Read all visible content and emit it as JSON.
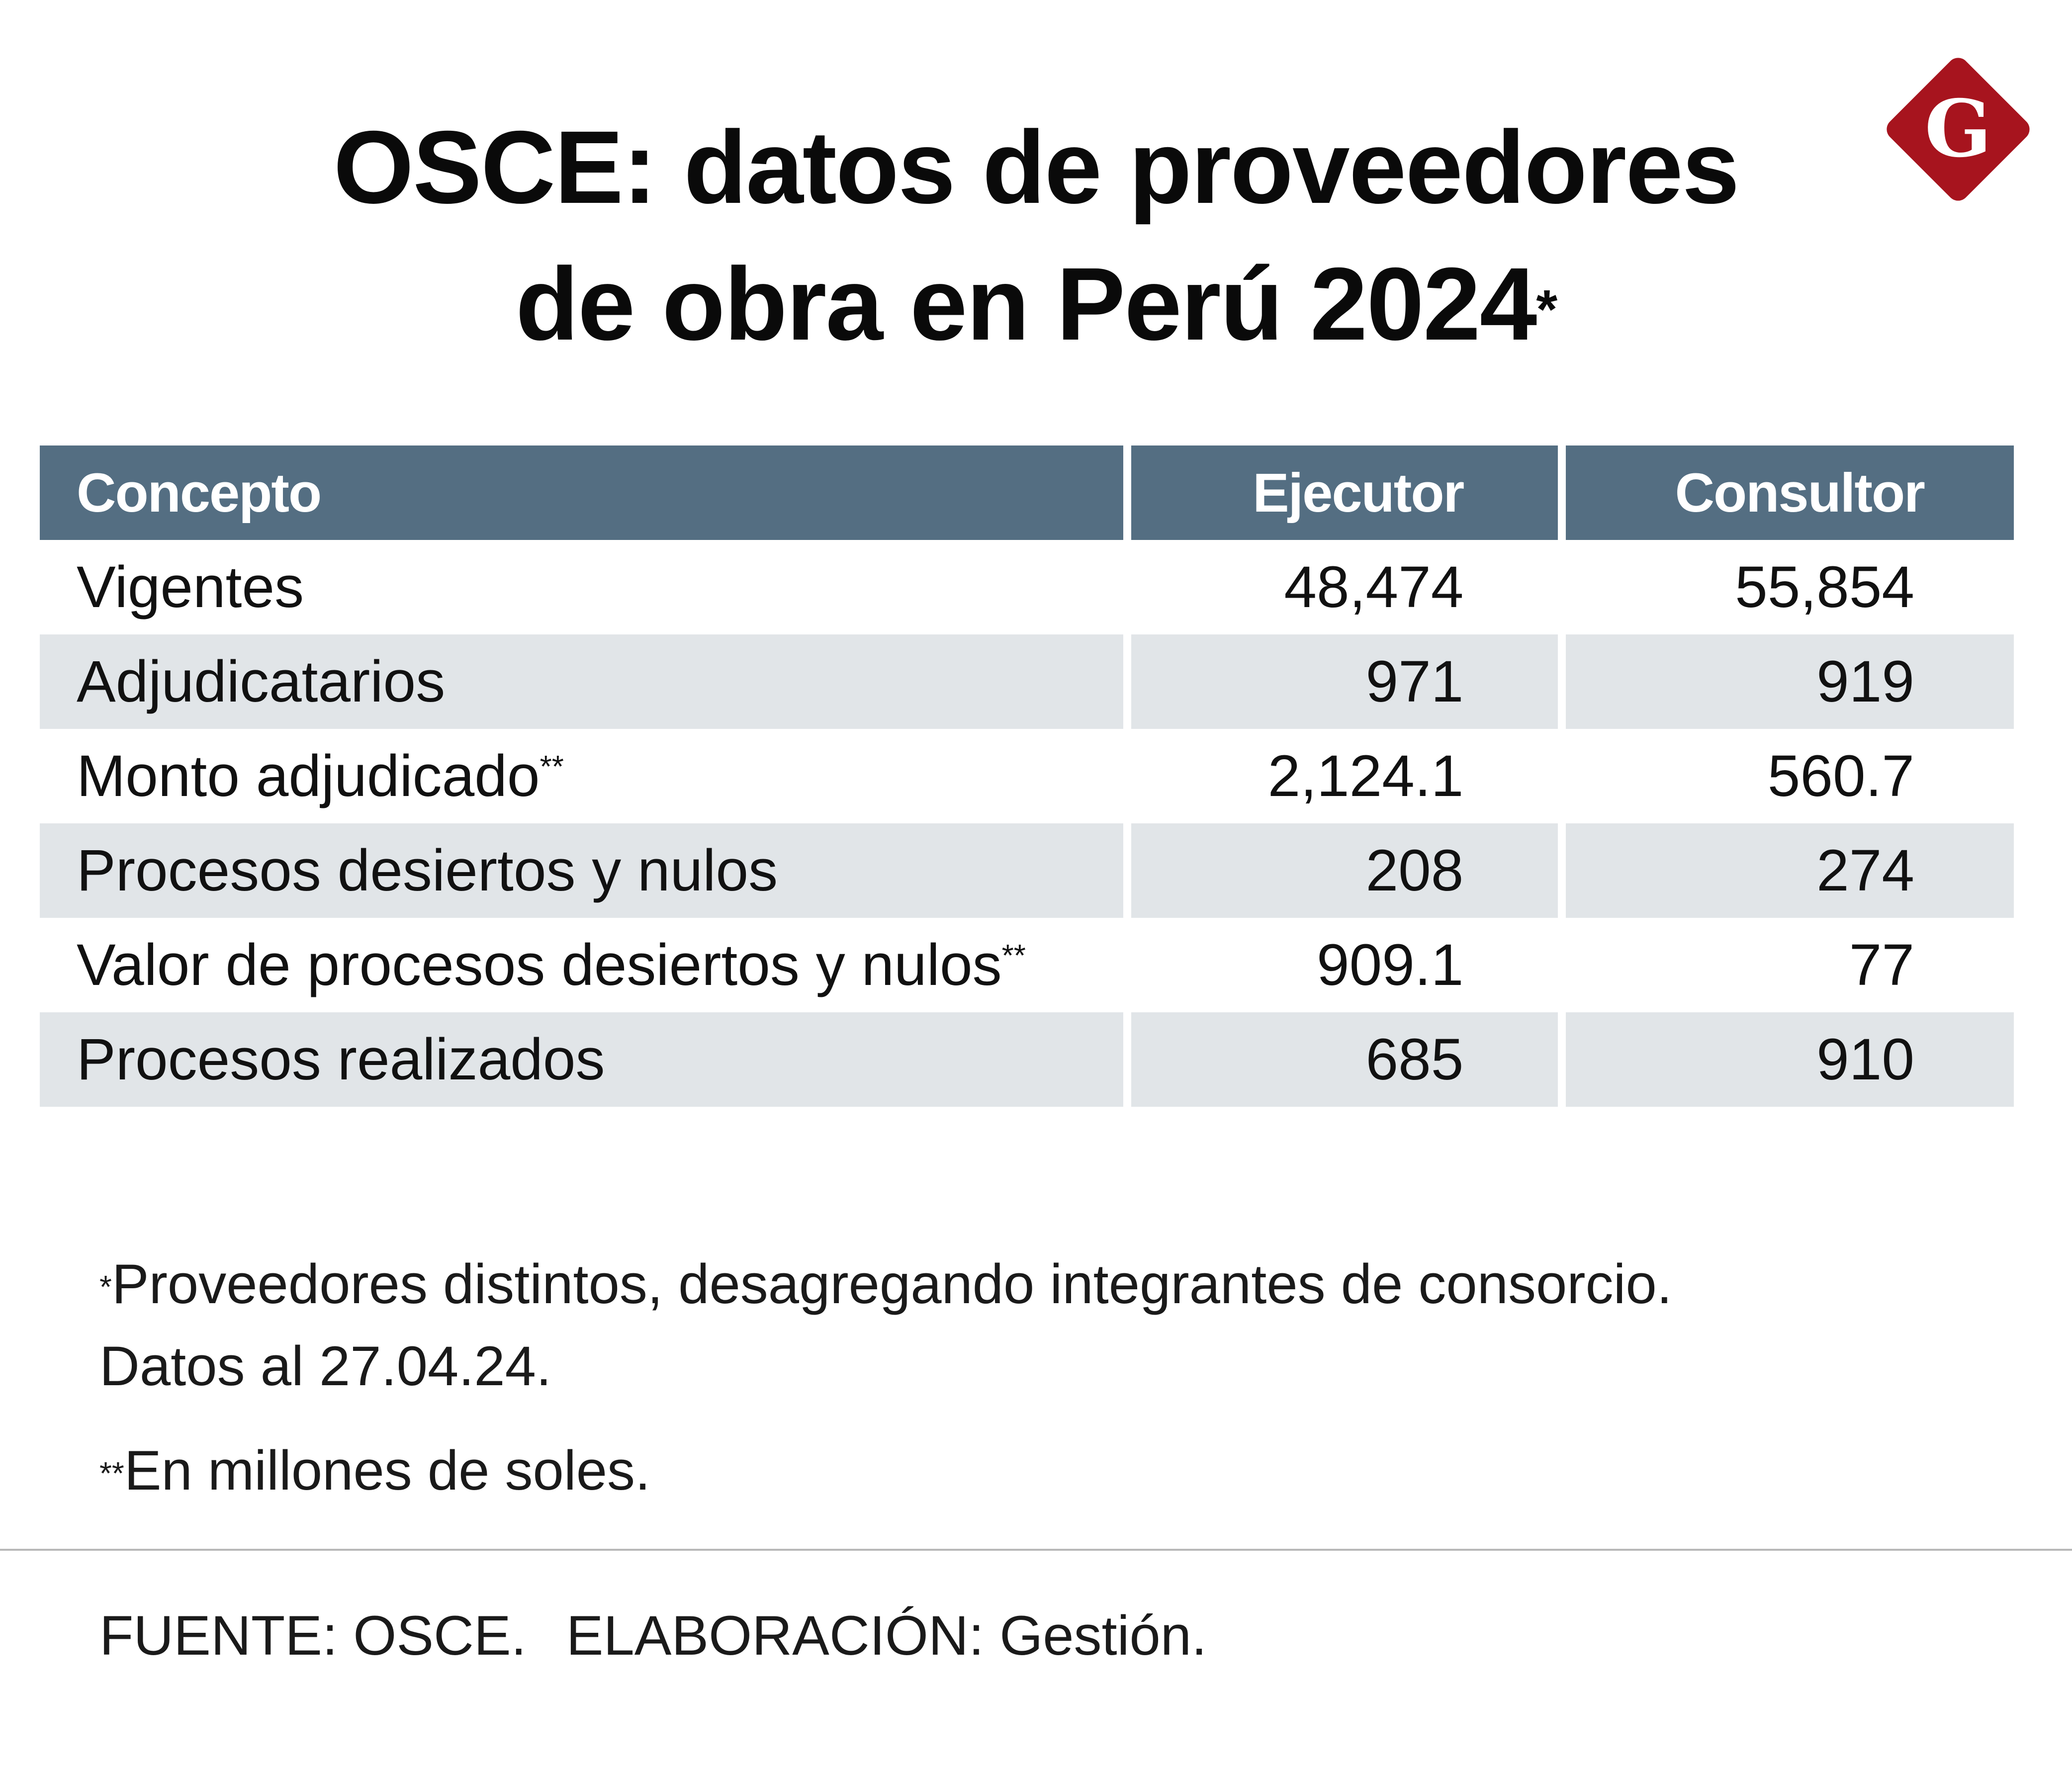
{
  "title": {
    "line1": "OSCE: datos de proveedores",
    "line2": "de obra en Perú 2024",
    "marker": "*"
  },
  "logo": {
    "letter": "G",
    "color": "#a7141e"
  },
  "colors": {
    "header_bg": "#546e82",
    "row_shade": "#e1e5e8"
  },
  "chart_data": {
    "type": "table",
    "title": "OSCE: datos de proveedores de obra en Perú 2024*",
    "columns": [
      "Concepto",
      "Ejecutor",
      "Consultor"
    ],
    "rows": [
      {
        "concepto": "Vigentes",
        "note": "",
        "ejecutor": "48,474",
        "consultor": "55,854"
      },
      {
        "concepto": "Adjudicatarios",
        "note": "",
        "ejecutor": "971",
        "consultor": "919"
      },
      {
        "concepto": "Monto adjudicado",
        "note": "**",
        "ejecutor": "2,124.1",
        "consultor": "560.7"
      },
      {
        "concepto": "Procesos desiertos y nulos",
        "note": "",
        "ejecutor": "208",
        "consultor": "274"
      },
      {
        "concepto": "Valor de procesos desiertos y nulos",
        "note": "**",
        "ejecutor": "909.1",
        "consultor": "77"
      },
      {
        "concepto": "Procesos realizados",
        "note": "",
        "ejecutor": "685",
        "consultor": "910"
      }
    ]
  },
  "notes": {
    "n1_marker": "*",
    "n1_text": "Proveedores distintos, desagregando integrantes de consorcio.",
    "n1_line2": "Datos al 27.04.24.",
    "n2_marker": "**",
    "n2_text": "En millones de soles."
  },
  "source": {
    "fuente": "FUENTE: OSCE.",
    "elaboracion": "ELABORACIÓN: Gestión."
  }
}
